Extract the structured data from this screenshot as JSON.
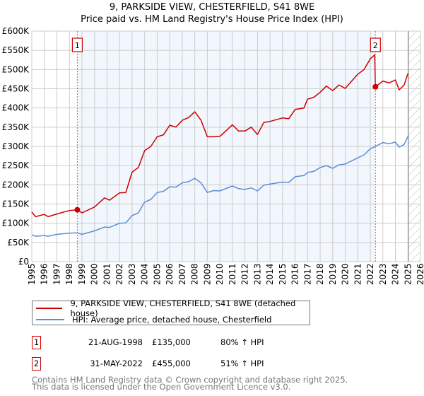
{
  "chart_data": {
    "type": "line",
    "title": "9, PARKSIDE VIEW, CHESTERFIELD, S41 8WE",
    "subtitle": "Price paid vs. HM Land Registry's House Price Index (HPI)",
    "xlim": [
      1995,
      2026
    ],
    "ylim": [
      0,
      600000
    ],
    "x_ticks": [
      "1995",
      "1996",
      "1997",
      "1998",
      "1999",
      "2000",
      "2001",
      "2002",
      "2003",
      "2004",
      "2005",
      "2006",
      "2007",
      "2008",
      "2009",
      "2010",
      "2011",
      "2012",
      "2013",
      "2014",
      "2015",
      "2016",
      "2017",
      "2018",
      "2019",
      "2020",
      "2021",
      "2022",
      "2023",
      "2024",
      "2025",
      "2026"
    ],
    "y_ticks": [
      {
        "v": 0,
        "label": "£0"
      },
      {
        "v": 50000,
        "label": "£50K"
      },
      {
        "v": 100000,
        "label": "£100K"
      },
      {
        "v": 150000,
        "label": "£150K"
      },
      {
        "v": 200000,
        "label": "£200K"
      },
      {
        "v": 250000,
        "label": "£250K"
      },
      {
        "v": 300000,
        "label": "£300K"
      },
      {
        "v": 350000,
        "label": "£350K"
      },
      {
        "v": 400000,
        "label": "£400K"
      },
      {
        "v": 450000,
        "label": "£450K"
      },
      {
        "v": 500000,
        "label": "£500K"
      },
      {
        "v": 550000,
        "label": "£550K"
      },
      {
        "v": 600000,
        "label": "£600K"
      }
    ],
    "grid": true,
    "forecast_start": 2025.05,
    "series": [
      {
        "name": "9, PARKSIDE VIEW, CHESTERFIELD, S41 8WE (detached house)",
        "color": "#cc0000",
        "points": [
          [
            1995,
            129000
          ],
          [
            1995.3,
            117000
          ],
          [
            1996,
            123000
          ],
          [
            1996.3,
            117000
          ],
          [
            1997,
            124000
          ],
          [
            1998,
            133000
          ],
          [
            1998.63,
            135000
          ],
          [
            1999,
            127000
          ],
          [
            2000,
            142000
          ],
          [
            2000.8,
            166000
          ],
          [
            2001.2,
            160000
          ],
          [
            2002,
            179000
          ],
          [
            2002.5,
            180000
          ],
          [
            2003,
            233000
          ],
          [
            2003.5,
            245000
          ],
          [
            2004,
            289000
          ],
          [
            2004.5,
            300000
          ],
          [
            2005,
            325000
          ],
          [
            2005.5,
            330000
          ],
          [
            2006,
            355000
          ],
          [
            2006.5,
            350000
          ],
          [
            2007,
            368000
          ],
          [
            2007.5,
            375000
          ],
          [
            2008,
            390000
          ],
          [
            2008.5,
            368000
          ],
          [
            2009,
            325000
          ],
          [
            2009.5,
            325000
          ],
          [
            2010,
            326000
          ],
          [
            2011,
            356000
          ],
          [
            2011.5,
            340000
          ],
          [
            2012,
            340000
          ],
          [
            2012.5,
            350000
          ],
          [
            2013,
            331000
          ],
          [
            2013.5,
            362000
          ],
          [
            2014,
            365000
          ],
          [
            2015,
            374000
          ],
          [
            2015.5,
            372000
          ],
          [
            2016,
            396000
          ],
          [
            2016.7,
            400000
          ],
          [
            2017,
            423000
          ],
          [
            2017.5,
            428000
          ],
          [
            2018,
            441000
          ],
          [
            2018.5,
            457000
          ],
          [
            2019,
            445000
          ],
          [
            2019.5,
            460000
          ],
          [
            2020,
            451000
          ],
          [
            2021,
            488000
          ],
          [
            2021.5,
            500000
          ],
          [
            2022,
            528000
          ],
          [
            2022.35,
            538000
          ],
          [
            2022.41,
            455000
          ],
          [
            2023,
            470000
          ],
          [
            2023.5,
            465000
          ],
          [
            2024,
            473000
          ],
          [
            2024.3,
            447000
          ],
          [
            2024.7,
            460000
          ],
          [
            2025,
            490000
          ]
        ]
      },
      {
        "name": "HPI: Average price, detached house, Chesterfield",
        "color": "#5b8fd4",
        "points": [
          [
            1995,
            70000
          ],
          [
            1995.3,
            66000
          ],
          [
            1996,
            68000
          ],
          [
            1996.3,
            66000
          ],
          [
            1997,
            71000
          ],
          [
            1998,
            74000
          ],
          [
            1998.63,
            75000
          ],
          [
            1999,
            71000
          ],
          [
            2000,
            80000
          ],
          [
            2000.8,
            90000
          ],
          [
            2001.2,
            89000
          ],
          [
            2002,
            100000
          ],
          [
            2002.5,
            101000
          ],
          [
            2003,
            120000
          ],
          [
            2003.5,
            127000
          ],
          [
            2004,
            155000
          ],
          [
            2004.5,
            162000
          ],
          [
            2005,
            180000
          ],
          [
            2005.5,
            183000
          ],
          [
            2006,
            195000
          ],
          [
            2006.5,
            194000
          ],
          [
            2007,
            205000
          ],
          [
            2007.5,
            208000
          ],
          [
            2008,
            217000
          ],
          [
            2008.5,
            205000
          ],
          [
            2009,
            180000
          ],
          [
            2009.5,
            185000
          ],
          [
            2010,
            184000
          ],
          [
            2011,
            197000
          ],
          [
            2011.5,
            190000
          ],
          [
            2012,
            188000
          ],
          [
            2012.5,
            192000
          ],
          [
            2013,
            184000
          ],
          [
            2013.5,
            199000
          ],
          [
            2014,
            202000
          ],
          [
            2015,
            207000
          ],
          [
            2015.5,
            206000
          ],
          [
            2016,
            221000
          ],
          [
            2016.7,
            224000
          ],
          [
            2017,
            232000
          ],
          [
            2017.5,
            235000
          ],
          [
            2018,
            245000
          ],
          [
            2018.5,
            250000
          ],
          [
            2019,
            243000
          ],
          [
            2019.5,
            252000
          ],
          [
            2020,
            254000
          ],
          [
            2021,
            270000
          ],
          [
            2021.5,
            278000
          ],
          [
            2022,
            294000
          ],
          [
            2022.41,
            300000
          ],
          [
            2023,
            310000
          ],
          [
            2023.5,
            307000
          ],
          [
            2024,
            311000
          ],
          [
            2024.3,
            298000
          ],
          [
            2024.7,
            305000
          ],
          [
            2025,
            326000
          ]
        ]
      }
    ],
    "annotations": [
      {
        "label": "1",
        "x": 1998.63,
        "y": 135000
      },
      {
        "label": "2",
        "x": 2022.41,
        "y": 455000
      }
    ]
  },
  "legend": {
    "property": "9, PARKSIDE VIEW, CHESTERFIELD, S41 8WE (detached house)",
    "hpi": "HPI: Average price, detached house, Chesterfield"
  },
  "sales": [
    {
      "num": "1",
      "date": "21-AUG-1998",
      "price": "£135,000",
      "hpi": "80% ↑ HPI"
    },
    {
      "num": "2",
      "date": "31-MAY-2022",
      "price": "£455,000",
      "hpi": "51% ↑ HPI"
    }
  ],
  "footer": {
    "line1": "Contains HM Land Registry data © Crown copyright and database right 2025.",
    "line2": "This data is licensed under the Open Government Licence v3.0."
  }
}
